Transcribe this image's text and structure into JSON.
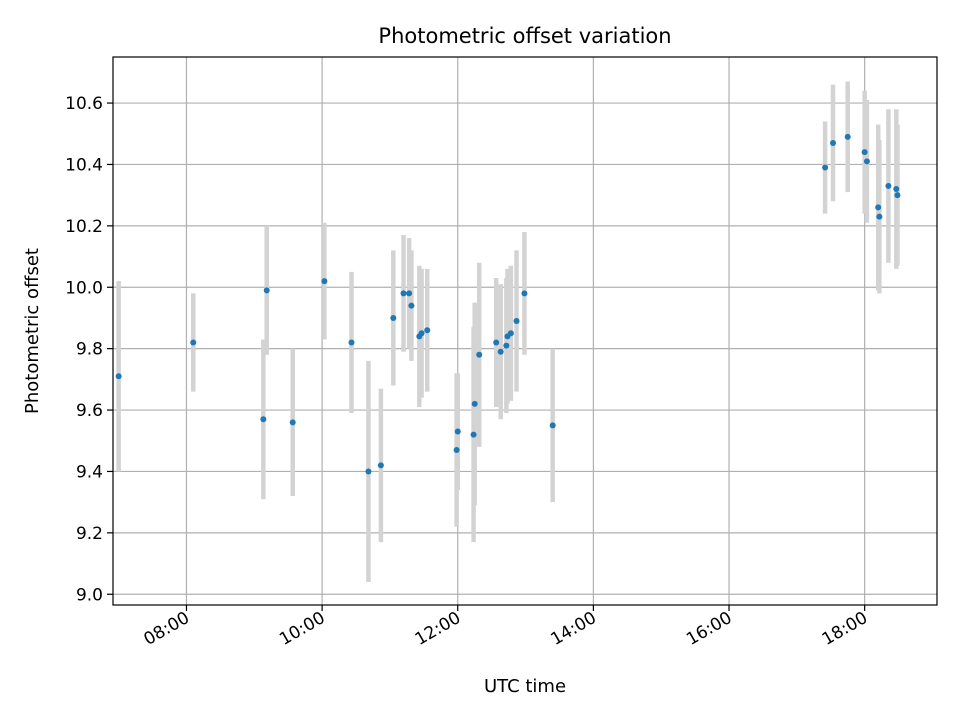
{
  "chart_data": {
    "type": "scatter",
    "title": "Photometric offset variation",
    "xlabel": "UTC time",
    "ylabel": "Photometric offset",
    "x_unit": "hours UTC",
    "xlim": [
      "06:55",
      "19:04"
    ],
    "ylim": [
      8.965,
      10.75
    ],
    "x_ticks": [
      "08:00",
      "10:00",
      "12:00",
      "14:00",
      "16:00",
      "18:00"
    ],
    "y_ticks": [
      "9.0",
      "9.2",
      "9.4",
      "9.6",
      "9.8",
      "10.0",
      "10.2",
      "10.4",
      "10.6"
    ],
    "grid": true,
    "marker_color": "#1f77b4",
    "errorbar_color": "#d3d3d3",
    "points": [
      {
        "x": "07:00",
        "y": 9.71,
        "yerr": 0.31
      },
      {
        "x": "08:06",
        "y": 9.82,
        "yerr": 0.16
      },
      {
        "x": "09:08",
        "y": 9.57,
        "yerr": 0.26
      },
      {
        "x": "09:11",
        "y": 9.99,
        "yerr": 0.21
      },
      {
        "x": "09:34",
        "y": 9.56,
        "yerr": 0.24
      },
      {
        "x": "10:02",
        "y": 10.02,
        "yerr": 0.19
      },
      {
        "x": "10:26",
        "y": 9.82,
        "yerr": 0.23
      },
      {
        "x": "10:41",
        "y": 9.4,
        "yerr": 0.36
      },
      {
        "x": "10:52",
        "y": 9.42,
        "yerr": 0.25
      },
      {
        "x": "11:03",
        "y": 9.9,
        "yerr": 0.22
      },
      {
        "x": "11:12",
        "y": 9.98,
        "yerr": 0.19
      },
      {
        "x": "11:17",
        "y": 9.98,
        "yerr": 0.18
      },
      {
        "x": "11:19",
        "y": 9.94,
        "yerr": 0.18
      },
      {
        "x": "11:26",
        "y": 9.84,
        "yerr": 0.23
      },
      {
        "x": "11:28",
        "y": 9.85,
        "yerr": 0.21
      },
      {
        "x": "11:33",
        "y": 9.86,
        "yerr": 0.2
      },
      {
        "x": "11:59",
        "y": 9.47,
        "yerr": 0.25
      },
      {
        "x": "12:00",
        "y": 9.53,
        "yerr": 0.19
      },
      {
        "x": "12:14",
        "y": 9.52,
        "yerr": 0.35
      },
      {
        "x": "12:15",
        "y": 9.62,
        "yerr": 0.33
      },
      {
        "x": "12:19",
        "y": 9.78,
        "yerr": 0.3
      },
      {
        "x": "12:34",
        "y": 9.82,
        "yerr": 0.21
      },
      {
        "x": "12:38",
        "y": 9.79,
        "yerr": 0.22
      },
      {
        "x": "12:43",
        "y": 9.81,
        "yerr": 0.22
      },
      {
        "x": "12:44",
        "y": 9.84,
        "yerr": 0.22
      },
      {
        "x": "12:47",
        "y": 9.85,
        "yerr": 0.22
      },
      {
        "x": "12:52",
        "y": 9.89,
        "yerr": 0.23
      },
      {
        "x": "12:59",
        "y": 9.98,
        "yerr": 0.2
      },
      {
        "x": "13:24",
        "y": 9.55,
        "yerr": 0.25
      },
      {
        "x": "17:25",
        "y": 10.39,
        "yerr": 0.15
      },
      {
        "x": "17:32",
        "y": 10.47,
        "yerr": 0.19
      },
      {
        "x": "17:45",
        "y": 10.49,
        "yerr": 0.18
      },
      {
        "x": "18:00",
        "y": 10.44,
        "yerr": 0.2
      },
      {
        "x": "18:02",
        "y": 10.41,
        "yerr": 0.2
      },
      {
        "x": "18:12",
        "y": 10.26,
        "yerr": 0.27
      },
      {
        "x": "18:13",
        "y": 10.23,
        "yerr": 0.25
      },
      {
        "x": "18:21",
        "y": 10.33,
        "yerr": 0.25
      },
      {
        "x": "18:28",
        "y": 10.32,
        "yerr": 0.26
      },
      {
        "x": "18:29",
        "y": 10.3,
        "yerr": 0.23
      }
    ]
  }
}
